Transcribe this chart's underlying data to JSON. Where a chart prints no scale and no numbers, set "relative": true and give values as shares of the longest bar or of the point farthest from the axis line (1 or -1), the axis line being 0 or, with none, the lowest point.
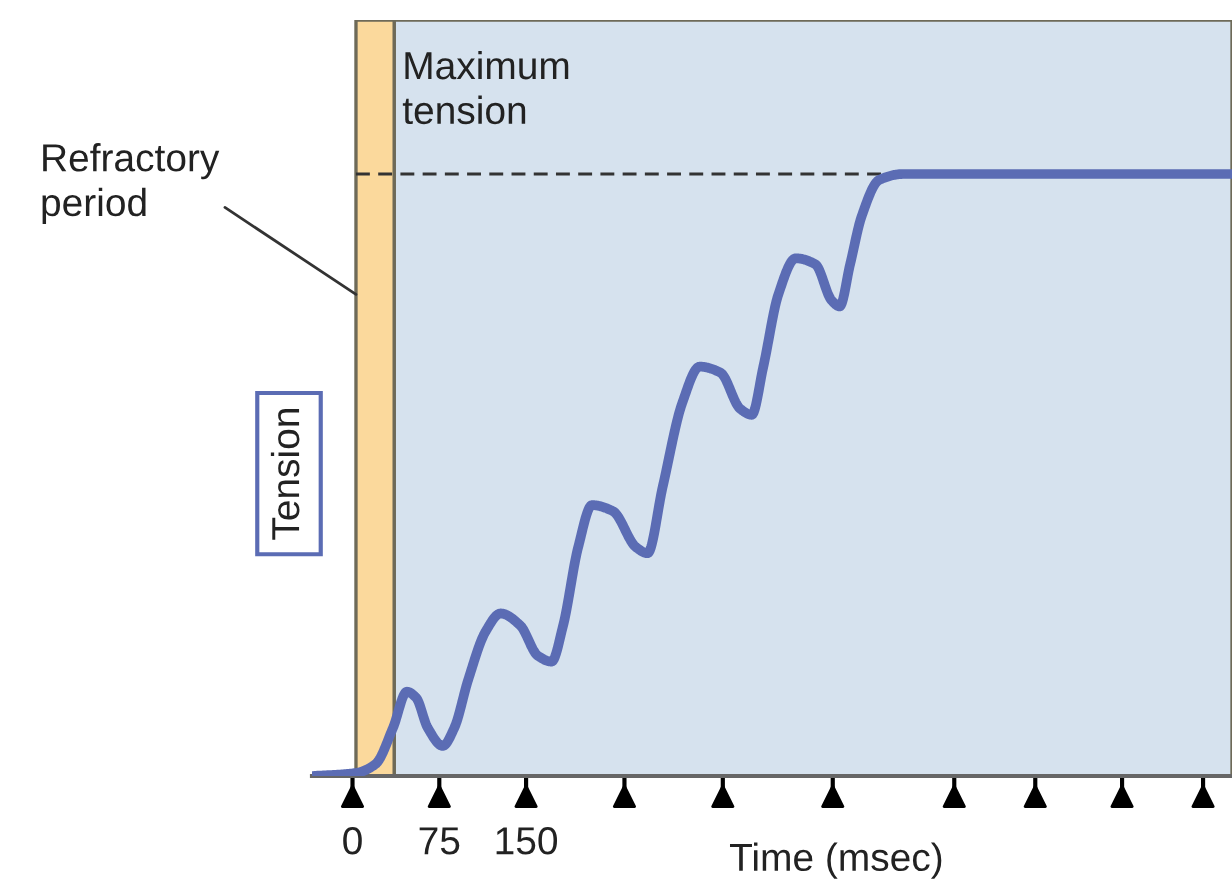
{
  "chart_data": {
    "type": "line",
    "relative": true,
    "xlabel": "Time (msec)",
    "ylabel": "Tension",
    "xlim": [
      -35,
      760
    ],
    "xticks": [
      0,
      75,
      150,
      {
        "value": 235,
        "label": null
      },
      {
        "value": 320,
        "label": null
      },
      {
        "value": 415,
        "label": null
      },
      {
        "value": 520,
        "label": null
      },
      {
        "value": 590,
        "label": null
      },
      {
        "value": 665,
        "label": null
      },
      {
        "value": 735,
        "label": null
      }
    ],
    "x": [
      -34,
      3,
      20,
      35,
      47,
      55,
      65,
      78,
      88,
      100,
      115,
      128,
      145,
      160,
      172,
      182,
      195,
      207,
      225,
      245,
      255,
      268,
      285,
      300,
      318,
      335,
      345,
      355,
      368,
      383,
      400,
      414,
      421,
      430,
      440,
      455,
      476,
      760
    ],
    "series": [
      {
        "color": "#5b6cb4",
        "values": [
          0,
          0.005,
          0.02,
          0.08,
          0.14,
          0.13,
          0.08,
          0.05,
          0.08,
          0.16,
          0.24,
          0.27,
          0.25,
          0.2,
          0.19,
          0.25,
          0.38,
          0.45,
          0.44,
          0.38,
          0.37,
          0.48,
          0.62,
          0.68,
          0.67,
          0.61,
          0.6,
          0.68,
          0.8,
          0.86,
          0.85,
          0.79,
          0.78,
          0.85,
          0.93,
          0.99,
          1,
          1
        ]
      }
    ],
    "bands": [
      {
        "axis": "x",
        "from": 36,
        "to": 760,
        "color": "#d6e2ee"
      },
      {
        "axis": "x",
        "from": 3,
        "to": 36,
        "color": "#fbd99c",
        "label": "Refractory\nperiod"
      }
    ],
    "ref_lines": [
      {
        "axis": "y",
        "value": 1,
        "label": "Maximum\ntension",
        "line_style": "dashed",
        "color": "#333333"
      }
    ],
    "grid": false,
    "legend": false,
    "marker": "none",
    "line_style": "solid"
  }
}
